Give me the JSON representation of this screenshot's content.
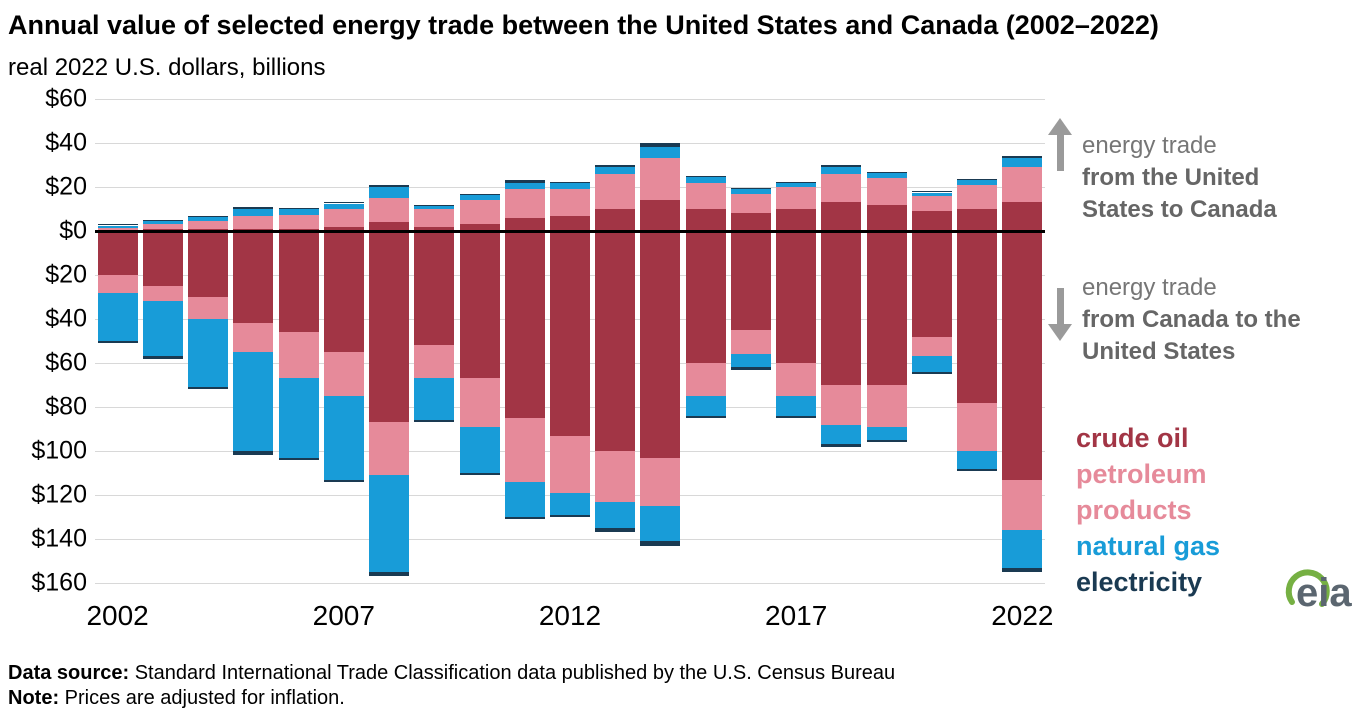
{
  "title": "Annual value of selected energy trade between the United States and Canada (2002–2022)",
  "subtitle": "real 2022 U.S. dollars, billions",
  "annotations": {
    "top": {
      "line1": "energy trade",
      "line2": "from the United States to Canada"
    },
    "bottom": {
      "line1": "energy trade",
      "line2": "from Canada to the United States"
    }
  },
  "legend": [
    {
      "label": "crude oil",
      "color": "#a23545"
    },
    {
      "label": "petroleum products",
      "color": "#e68a9a"
    },
    {
      "label": "natural gas",
      "color": "#189cd8"
    },
    {
      "label": "electricity",
      "color": "#1a3a52"
    }
  ],
  "logo": {
    "text": "eia"
  },
  "footer": {
    "source_label": "Data source:",
    "source_text": " Standard International Trade Classification data published by the U.S. Census Bureau",
    "note_label": "Note:",
    "note_text": " Prices are adjusted for inflation."
  },
  "chart_data": {
    "type": "bar",
    "stacked": true,
    "diverging": true,
    "units": "billion real 2022 U.S. dollars",
    "positive_direction": "energy trade from the United States to Canada",
    "negative_direction": "energy trade from Canada to the United States",
    "categories": [
      2002,
      2003,
      2004,
      2005,
      2006,
      2007,
      2008,
      2009,
      2010,
      2011,
      2012,
      2013,
      2014,
      2015,
      2016,
      2017,
      2018,
      2019,
      2020,
      2021,
      2022
    ],
    "x_ticks": [
      {
        "index": 0,
        "label": "2002"
      },
      {
        "index": 5,
        "label": "2007"
      },
      {
        "index": 10,
        "label": "2012"
      },
      {
        "index": 15,
        "label": "2017"
      },
      {
        "index": 20,
        "label": "2022"
      }
    ],
    "y_ticks": [
      {
        "value": 60,
        "label": "$60"
      },
      {
        "value": 40,
        "label": "$40"
      },
      {
        "value": 20,
        "label": "$20"
      },
      {
        "value": 0,
        "label": "$0"
      },
      {
        "value": -20,
        "label": "$20"
      },
      {
        "value": -40,
        "label": "$40"
      },
      {
        "value": -60,
        "label": "$60"
      },
      {
        "value": -80,
        "label": "$80"
      },
      {
        "value": -100,
        "label": "$100"
      },
      {
        "value": -120,
        "label": "$120"
      },
      {
        "value": -140,
        "label": "$140"
      },
      {
        "value": -160,
        "label": "$160"
      }
    ],
    "ylim": [
      -160,
      60
    ],
    "series": [
      {
        "name": "crude oil",
        "color": "#a23545",
        "us_to_canada": [
          0.5,
          1,
          1,
          1,
          1,
          2,
          4,
          2,
          3,
          6,
          7,
          10,
          14,
          10,
          8,
          10,
          13,
          12,
          9,
          10,
          13
        ],
        "canada_to_us": [
          20,
          25,
          30,
          42,
          46,
          55,
          87,
          52,
          67,
          85,
          93,
          100,
          103,
          60,
          45,
          60,
          70,
          70,
          48,
          78,
          113
        ]
      },
      {
        "name": "petroleum products",
        "color": "#e68a9a",
        "us_to_canada": [
          1,
          2,
          3.5,
          6,
          6.5,
          8,
          11,
          8,
          11,
          13,
          12,
          16,
          19,
          12,
          9,
          10,
          13,
          12,
          7,
          11,
          16
        ],
        "canada_to_us": [
          8,
          7,
          10,
          13,
          21,
          20,
          24,
          15,
          22,
          29,
          26,
          23,
          22,
          15,
          11,
          15,
          18,
          19,
          9,
          22,
          23
        ]
      },
      {
        "name": "natural gas",
        "color": "#189cd8",
        "us_to_canada": [
          1,
          1.5,
          2,
          3,
          2.5,
          2.5,
          5,
          1.5,
          2.5,
          3,
          3,
          3,
          5,
          2.5,
          2,
          2,
          3,
          2.5,
          1.5,
          2,
          4
        ],
        "canada_to_us": [
          22,
          25,
          31,
          45,
          36,
          38,
          44,
          19,
          21,
          16,
          10,
          12,
          16,
          9,
          6,
          9,
          9,
          6,
          7,
          8,
          17
        ]
      },
      {
        "name": "electricity",
        "color": "#1a3a52",
        "us_to_canada": [
          0.5,
          0.5,
          0.5,
          1,
          0.5,
          0.5,
          1,
          0.5,
          0.5,
          1,
          0.5,
          1,
          2,
          0.5,
          0.5,
          0.5,
          1,
          0.5,
          0.5,
          0.5,
          1
        ],
        "canada_to_us": [
          1,
          1,
          1,
          2,
          1,
          1,
          2,
          1,
          1,
          1,
          1,
          2,
          2,
          1,
          1,
          1,
          1,
          1,
          1,
          1,
          2
        ]
      }
    ]
  }
}
